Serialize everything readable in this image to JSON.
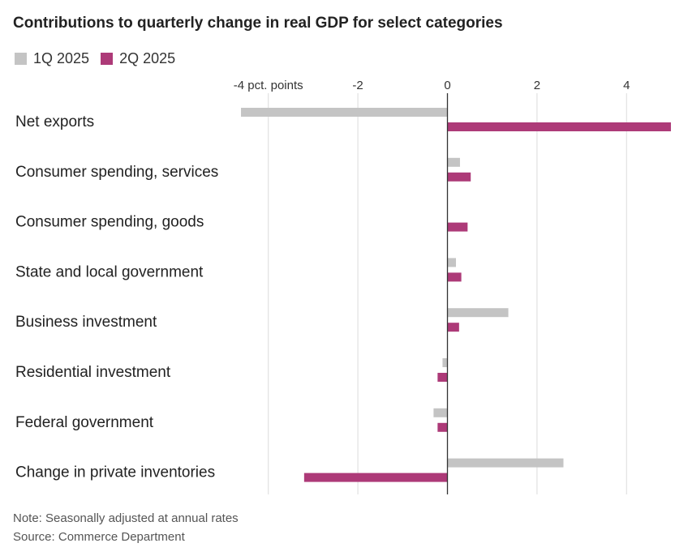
{
  "title": "Contributions to quarterly change in real GDP for select categories",
  "legend": [
    {
      "label": "1Q 2025",
      "color": "#c4c4c4"
    },
    {
      "label": "2Q 2025",
      "color": "#ad3a78"
    }
  ],
  "note": "Note: Seasonally adjusted at annual rates",
  "source": "Source: Commerce Department",
  "chart_data": {
    "type": "bar",
    "orientation": "horizontal",
    "title": "Contributions to quarterly change in real GDP for select categories",
    "xlabel": "pct. points",
    "ylabel": "",
    "xlim": [
      -4.0,
      5.0
    ],
    "xticks": [
      -4,
      -2,
      0,
      2,
      4
    ],
    "xtick_labels": [
      "-4 pct. points",
      "-2",
      "0",
      "2",
      "4"
    ],
    "grid": true,
    "legend_position": "top-left",
    "categories": [
      "Net exports",
      "Consumer spending, services",
      "Consumer spending, goods",
      "State and local government",
      "Business investment",
      "Residential investment",
      "Federal government",
      "Change in private inventories"
    ],
    "series": [
      {
        "name": "1Q 2025",
        "color": "#c4c4c4",
        "values": [
          -4.61,
          0.28,
          0.0,
          0.19,
          1.36,
          -0.11,
          -0.31,
          2.59
        ]
      },
      {
        "name": "2Q 2025",
        "color": "#ad3a78",
        "values": [
          4.99,
          0.52,
          0.45,
          0.31,
          0.26,
          -0.22,
          -0.22,
          -3.2
        ]
      }
    ]
  }
}
